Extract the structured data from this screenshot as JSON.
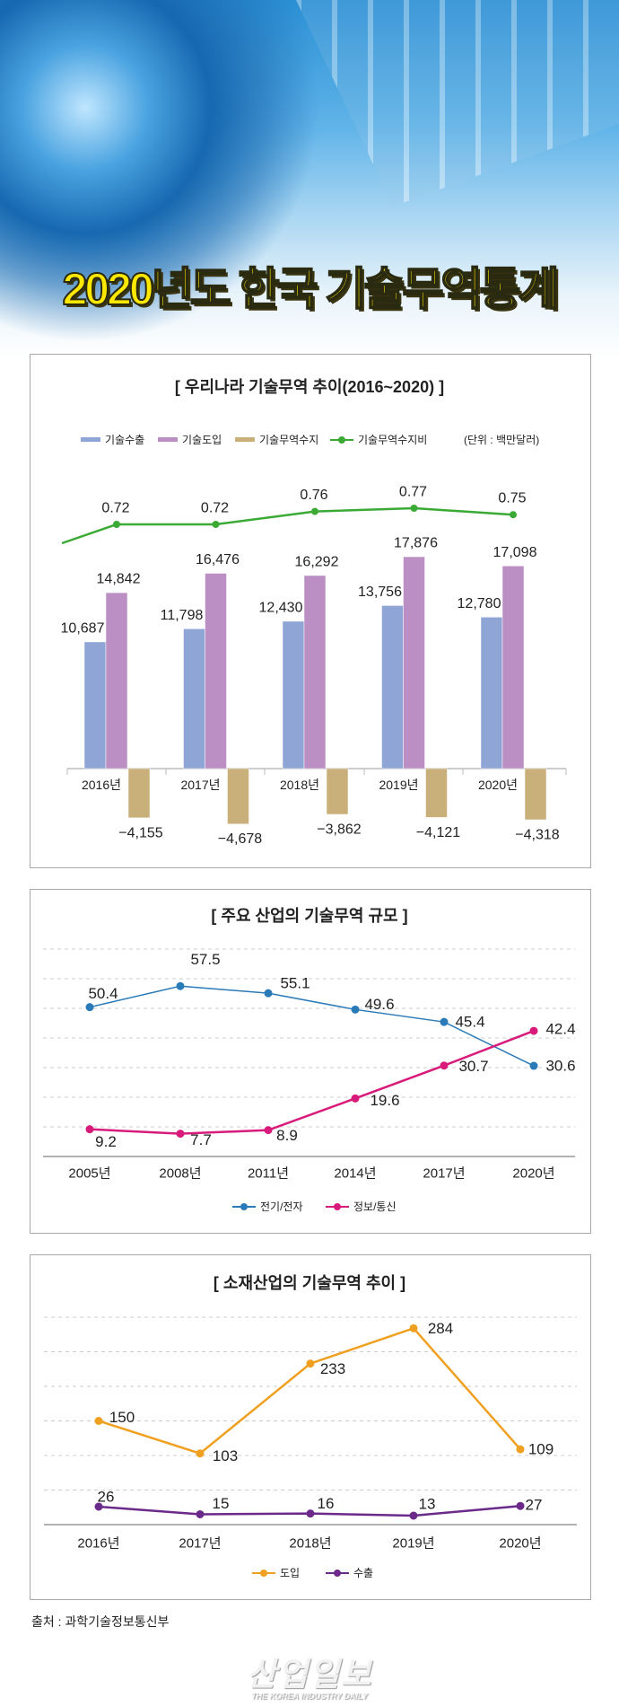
{
  "header": {
    "title": "2020년도 한국 기술무역통계"
  },
  "chart_data": [
    {
      "type": "bar",
      "title": "[ 우리나라 기술무역 추이(2016~2020) ]",
      "unit": "(단위 : 백만달러)",
      "categories": [
        "2016년",
        "2017년",
        "2018년",
        "2019년",
        "2020년"
      ],
      "series": [
        {
          "name": "기술수출",
          "type": "bar",
          "color": "#8fa5d5",
          "values": [
            10687,
            11798,
            12430,
            13756,
            12780
          ],
          "labels": [
            "10,687",
            "11,798",
            "12,430",
            "13,756",
            "12,780"
          ]
        },
        {
          "name": "기술도입",
          "type": "bar",
          "color": "#bb8fc4",
          "values": [
            14842,
            16476,
            16292,
            17876,
            17098
          ],
          "labels": [
            "14,842",
            "16,476",
            "16,292",
            "17,876",
            "17,098"
          ]
        },
        {
          "name": "기술무역수지",
          "type": "bar",
          "color": "#c9b07a",
          "values": [
            -4155,
            -4678,
            -3862,
            -4121,
            -4318
          ],
          "labels": [
            "−4,155",
            "−4,678",
            "−3,862",
            "−4,121",
            "−4,318"
          ]
        },
        {
          "name": "기술무역수지비",
          "type": "line",
          "color": "#3aaa35",
          "values": [
            0.72,
            0.72,
            0.76,
            0.77,
            0.75
          ],
          "labels": [
            "0.72",
            "0.72",
            "0.76",
            "0.77",
            "0.75"
          ]
        }
      ]
    },
    {
      "type": "line",
      "title": "[ 주요 산업의 기술무역 규모 ]",
      "grid": true,
      "categories": [
        "2005년",
        "2008년",
        "2011년",
        "2014년",
        "2017년",
        "2020년"
      ],
      "series": [
        {
          "name": "전기/전자",
          "color": "#2a7ab8",
          "values": [
            50.4,
            57.5,
            55.1,
            49.6,
            45.4,
            30.6
          ],
          "labels": [
            "50.4",
            "57.5",
            "55.1",
            "49.6",
            "45.4",
            "30.6"
          ]
        },
        {
          "name": "정보/통신",
          "color": "#d81b7a",
          "values": [
            9.2,
            7.7,
            8.9,
            19.6,
            30.7,
            42.4
          ],
          "labels": [
            "9.2",
            "7.7",
            "8.9",
            "19.6",
            "30.7",
            "42.4"
          ]
        }
      ]
    },
    {
      "type": "line",
      "title": "[ 소재산업의 기술무역 추이 ]",
      "grid": true,
      "categories": [
        "2016년",
        "2017년",
        "2018년",
        "2019년",
        "2020년"
      ],
      "series": [
        {
          "name": "도입",
          "color": "#f0a020",
          "values": [
            150,
            103,
            233,
            284,
            109
          ],
          "labels": [
            "150",
            "103",
            "233",
            "284",
            "109"
          ]
        },
        {
          "name": "수출",
          "color": "#6b2a8a",
          "values": [
            26,
            15,
            16,
            13,
            27
          ],
          "labels": [
            "26",
            "15",
            "16",
            "13",
            "27"
          ]
        }
      ]
    }
  ],
  "footer": {
    "source": "출처 : 과학기술정보통신부",
    "logo_text": "산업일보",
    "logo_subtext": "THE KOREA INDUSTRY DAILY"
  }
}
